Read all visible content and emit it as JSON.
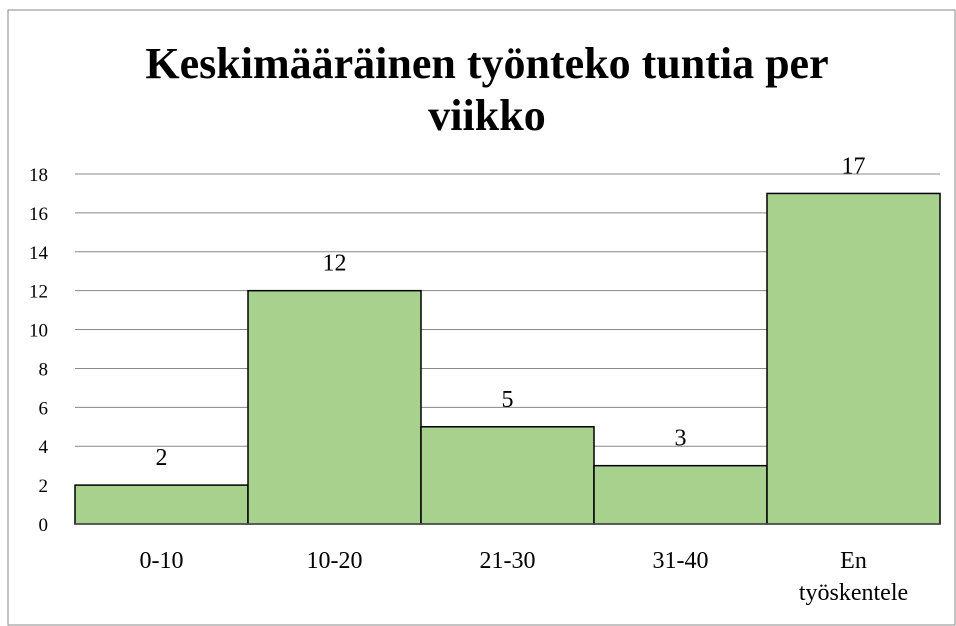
{
  "chart_data": {
    "type": "bar",
    "title": "Keskimääräinen työnteko tuntia per viikko",
    "categories": [
      "0-10",
      "10-20",
      "21-30",
      "31-40",
      "En työskentele"
    ],
    "values": [
      2,
      12,
      5,
      3,
      17
    ],
    "color": "#a9d18e",
    "ylim": [
      0,
      18
    ],
    "yticks": [
      0,
      2,
      4,
      6,
      8,
      10,
      12,
      14,
      16,
      18
    ],
    "grid": true
  }
}
